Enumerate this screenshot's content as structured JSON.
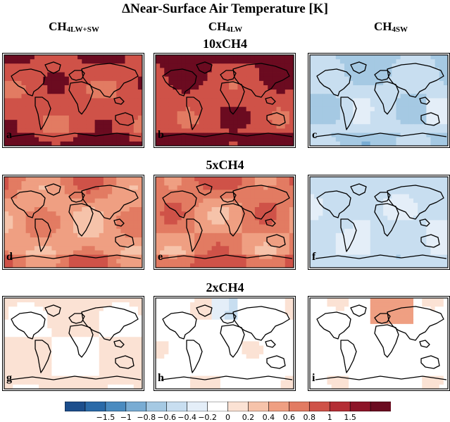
{
  "title": "ΔNear-Surface Air Temperature [K]",
  "columns": [
    {
      "base": "CH",
      "sub": "4LW+SW"
    },
    {
      "base": "CH",
      "sub": "4LW"
    },
    {
      "base": "CH",
      "sub": "4SW"
    }
  ],
  "rows": [
    {
      "label": "10xCH4",
      "panels": [
        {
          "letter": "a",
          "base_anomaly": 1.2
        },
        {
          "letter": "b",
          "base_anomaly": 1.3
        },
        {
          "letter": "c",
          "base_anomaly": -0.35
        }
      ]
    },
    {
      "label": "5xCH4",
      "panels": [
        {
          "letter": "d",
          "base_anomaly": 0.7
        },
        {
          "letter": "e",
          "base_anomaly": 0.8
        },
        {
          "letter": "f",
          "base_anomaly": -0.25
        }
      ]
    },
    {
      "label": "2xCH4",
      "panels": [
        {
          "letter": "g",
          "base_anomaly": 0.2
        },
        {
          "letter": "h",
          "base_anomaly": 0.12
        },
        {
          "letter": "i",
          "base_anomaly": 0.1
        }
      ]
    }
  ],
  "colorbar": {
    "colors": [
      "#1c4e8c",
      "#2a6aa8",
      "#4a8bc0",
      "#79acd3",
      "#a5c9e3",
      "#c8def0",
      "#e4eef8",
      "#ffffff",
      "#fbe2d4",
      "#f6c3aa",
      "#ef9f82",
      "#e27b62",
      "#cf5248",
      "#b42d34",
      "#8d1428",
      "#6b0b20"
    ],
    "ticks": [
      "−1.5",
      "−1",
      "−0.8",
      "−0.6",
      "−0.4",
      "−0.2",
      "0",
      "0.2",
      "0.4",
      "0.6",
      "0.8",
      "1",
      "1.5"
    ],
    "boundaries": [
      -1.5,
      -1,
      -0.8,
      -0.6,
      -0.4,
      -0.2,
      0,
      0.2,
      0.4,
      0.6,
      0.8,
      1,
      1.5
    ]
  }
}
